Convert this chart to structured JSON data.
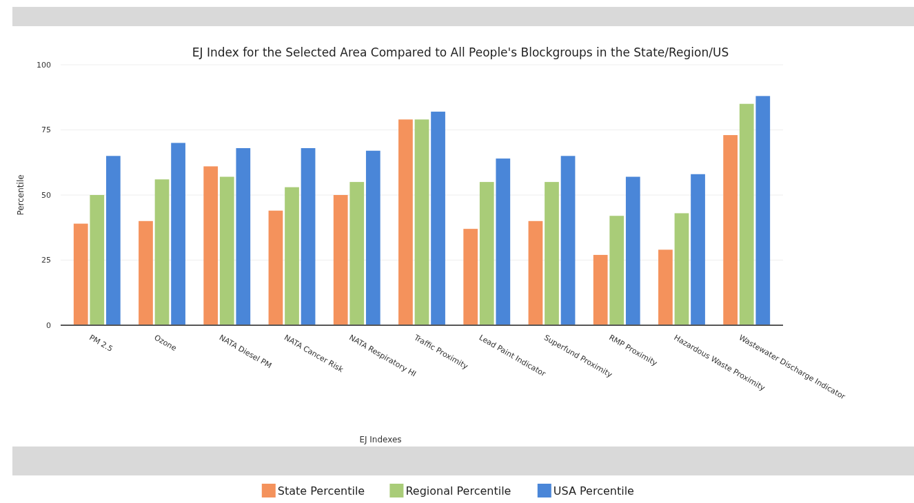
{
  "chart_data": {
    "type": "bar",
    "title": "EJ Index for the Selected Area Compared to All People's Blockgroups in the State/Region/US",
    "xlabel": "EJ Indexes",
    "ylabel": "Percentile",
    "categories": [
      "PM 2.5",
      "Ozone",
      "NATA Diesel PM",
      "NATA Cancer Risk",
      "NATA Respiratory HI",
      "Traffic Proximity",
      "Lead Paint Indicator",
      "Superfund Proximity",
      "RMP Proximity",
      "Hazardous Waste Proximity",
      "Wastewater Discharge Indicator"
    ],
    "series": [
      {
        "name": "State Percentile",
        "color": "#f4925c",
        "values": [
          39,
          40,
          61,
          44,
          50,
          79,
          37,
          40,
          27,
          29,
          73
        ]
      },
      {
        "name": "Regional Percentile",
        "color": "#a9cc78",
        "values": [
          50,
          56,
          57,
          53,
          55,
          79,
          55,
          55,
          42,
          43,
          85
        ]
      },
      {
        "name": "USA Percentile",
        "color": "#4a86d8",
        "values": [
          65,
          70,
          68,
          68,
          67,
          82,
          64,
          65,
          57,
          58,
          88
        ]
      }
    ],
    "ylim": [
      0,
      100
    ],
    "yticks": [
      0,
      25,
      50,
      75,
      100
    ],
    "grid": "y",
    "legend": "bottom"
  }
}
